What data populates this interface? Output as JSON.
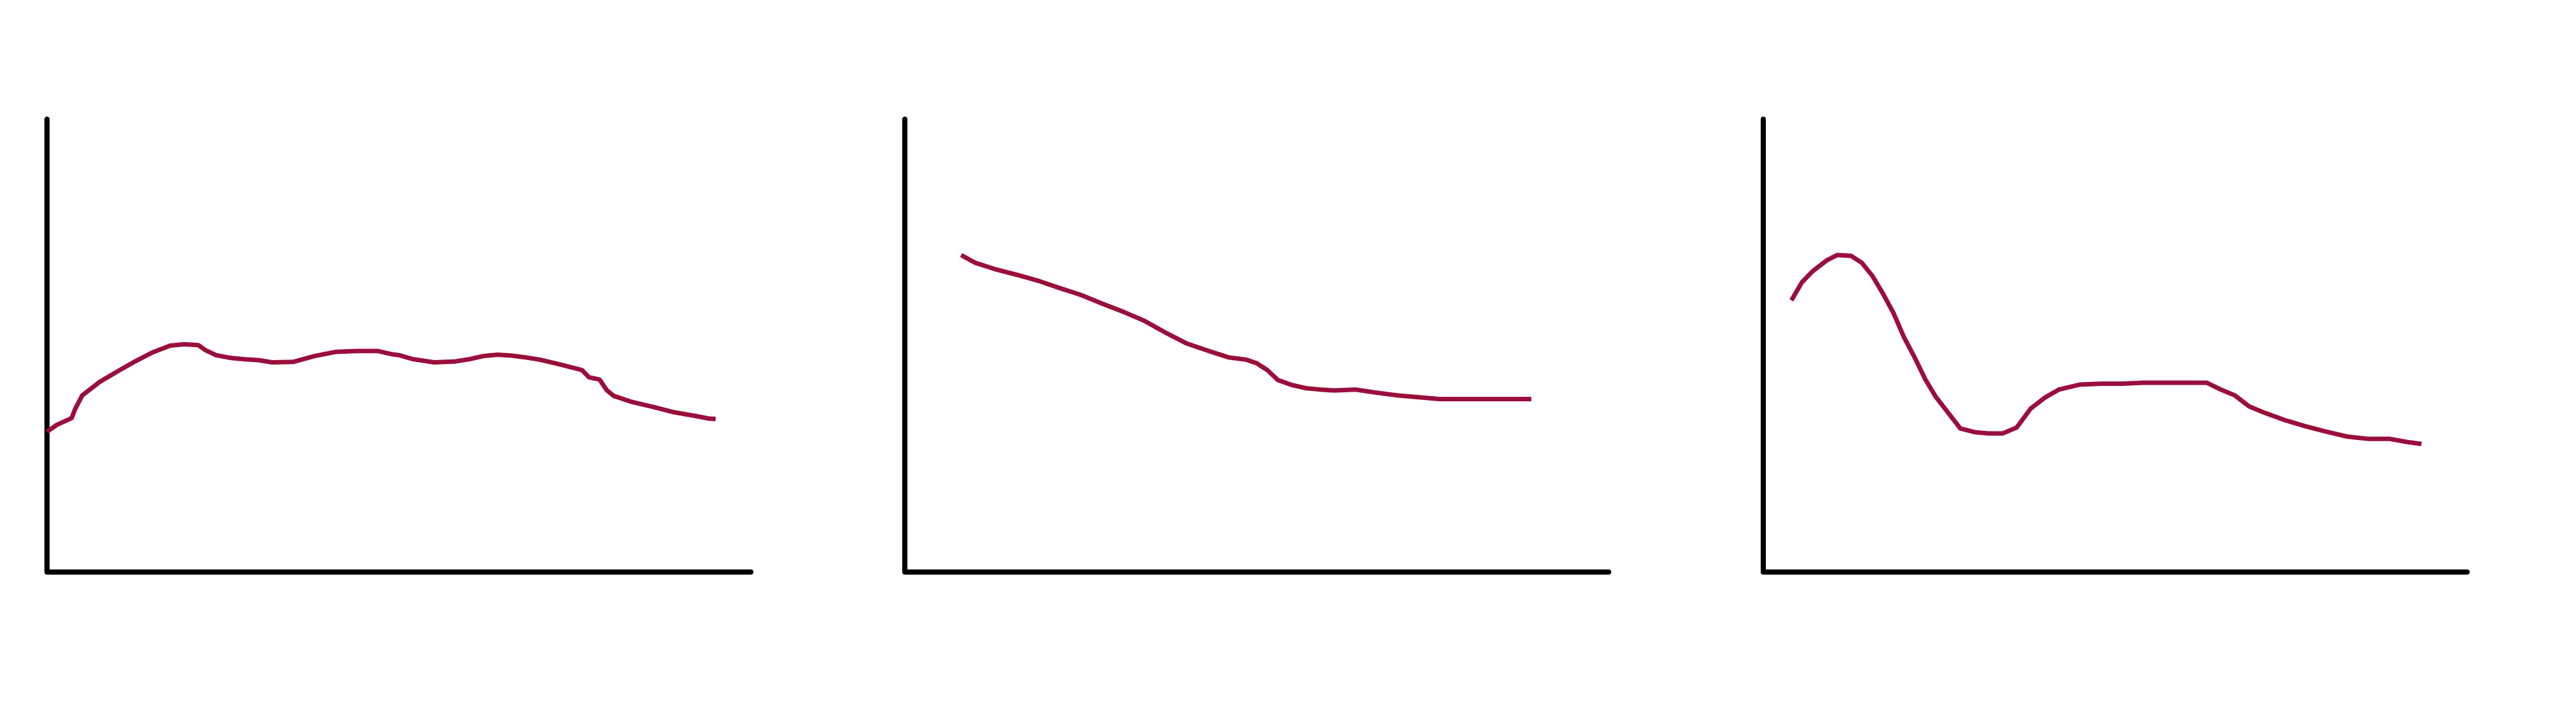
{
  "chart_data": [
    {
      "type": "line",
      "title": "",
      "xlabel": "",
      "ylabel": "",
      "xlim": [
        0,
        100
      ],
      "ylim": [
        0,
        100
      ],
      "grid": false,
      "series": [
        {
          "color": "#9a0f3a",
          "x": [
            0,
            1.4,
            3.5,
            4,
            5,
            7.5,
            10,
            12.5,
            15,
            17.5,
            19.5,
            21.5,
            22.5,
            24,
            26,
            28,
            30,
            32,
            35,
            38,
            41,
            44,
            47,
            49,
            50,
            52,
            55,
            58,
            60,
            62,
            64,
            66,
            68,
            70,
            73,
            76,
            77,
            78.5,
            79.5,
            80.5,
            83,
            86,
            89,
            92,
            94,
            95
          ],
          "y": [
            31,
            32.5,
            34,
            36,
            39,
            42,
            44.3,
            46.5,
            48.5,
            50,
            50.3,
            50.1,
            49,
            47.9,
            47.3,
            47,
            46.8,
            46.3,
            46.4,
            47.7,
            48.6,
            48.8,
            48.8,
            48.1,
            47.9,
            47,
            46.3,
            46.5,
            47,
            47.7,
            48,
            47.8,
            47.4,
            46.9,
            45.8,
            44.6,
            43,
            42.5,
            40.2,
            38.9,
            37.6,
            36.5,
            35.3,
            34.5,
            33.9,
            33.8
          ]
        }
      ]
    },
    {
      "type": "line",
      "title": "",
      "xlabel": "",
      "ylabel": "",
      "xlim": [
        0,
        100
      ],
      "ylim": [
        0,
        100
      ],
      "grid": false,
      "series": [
        {
          "color": "#9a0f3a",
          "x": [
            8,
            10,
            13,
            16,
            19,
            22,
            25,
            28,
            31,
            34,
            37,
            40,
            43,
            46,
            48.5,
            50,
            51.5,
            53,
            55,
            57,
            59,
            61,
            64,
            67,
            70,
            73,
            76,
            79,
            82,
            85,
            88,
            89
          ],
          "y": [
            70,
            68.3,
            66.8,
            65.6,
            64.3,
            62.7,
            61.2,
            59.3,
            57.5,
            55.5,
            52.9,
            50.5,
            48.9,
            47.4,
            46.9,
            46.1,
            44.6,
            42.4,
            41.3,
            40.6,
            40.3,
            40.1,
            40.3,
            39.6,
            39,
            38.6,
            38.2,
            38.2,
            38.2,
            38.2,
            38.2,
            38.2
          ]
        }
      ]
    },
    {
      "type": "line",
      "title": "",
      "xlabel": "",
      "ylabel": "",
      "xlim": [
        0,
        100
      ],
      "ylim": [
        0,
        100
      ],
      "grid": false,
      "series": [
        {
          "color": "#9a0f3a",
          "x": [
            4,
            5.5,
            7,
            9,
            10.5,
            12.5,
            14,
            15.5,
            17,
            18.5,
            20,
            21.5,
            23,
            24.5,
            26,
            28,
            30,
            32,
            34,
            36,
            38,
            40,
            42,
            45,
            48,
            51,
            54,
            57,
            60,
            63,
            65,
            67,
            69,
            71,
            74,
            77,
            80,
            83,
            86,
            89,
            91.5,
            93.5
          ],
          "y": [
            60,
            64,
            66.4,
            68.8,
            70,
            69.8,
            68.3,
            65.4,
            61.5,
            57.2,
            51.8,
            47.4,
            42.6,
            38.7,
            35.7,
            31.7,
            30.9,
            30.6,
            30.6,
            31.9,
            36.1,
            38.5,
            40.3,
            41.4,
            41.6,
            41.6,
            41.8,
            41.8,
            41.8,
            41.8,
            40.3,
            39,
            36.6,
            35.3,
            33.6,
            32.2,
            31,
            29.9,
            29.4,
            29.4,
            28.7,
            28.3
          ]
        }
      ]
    }
  ]
}
